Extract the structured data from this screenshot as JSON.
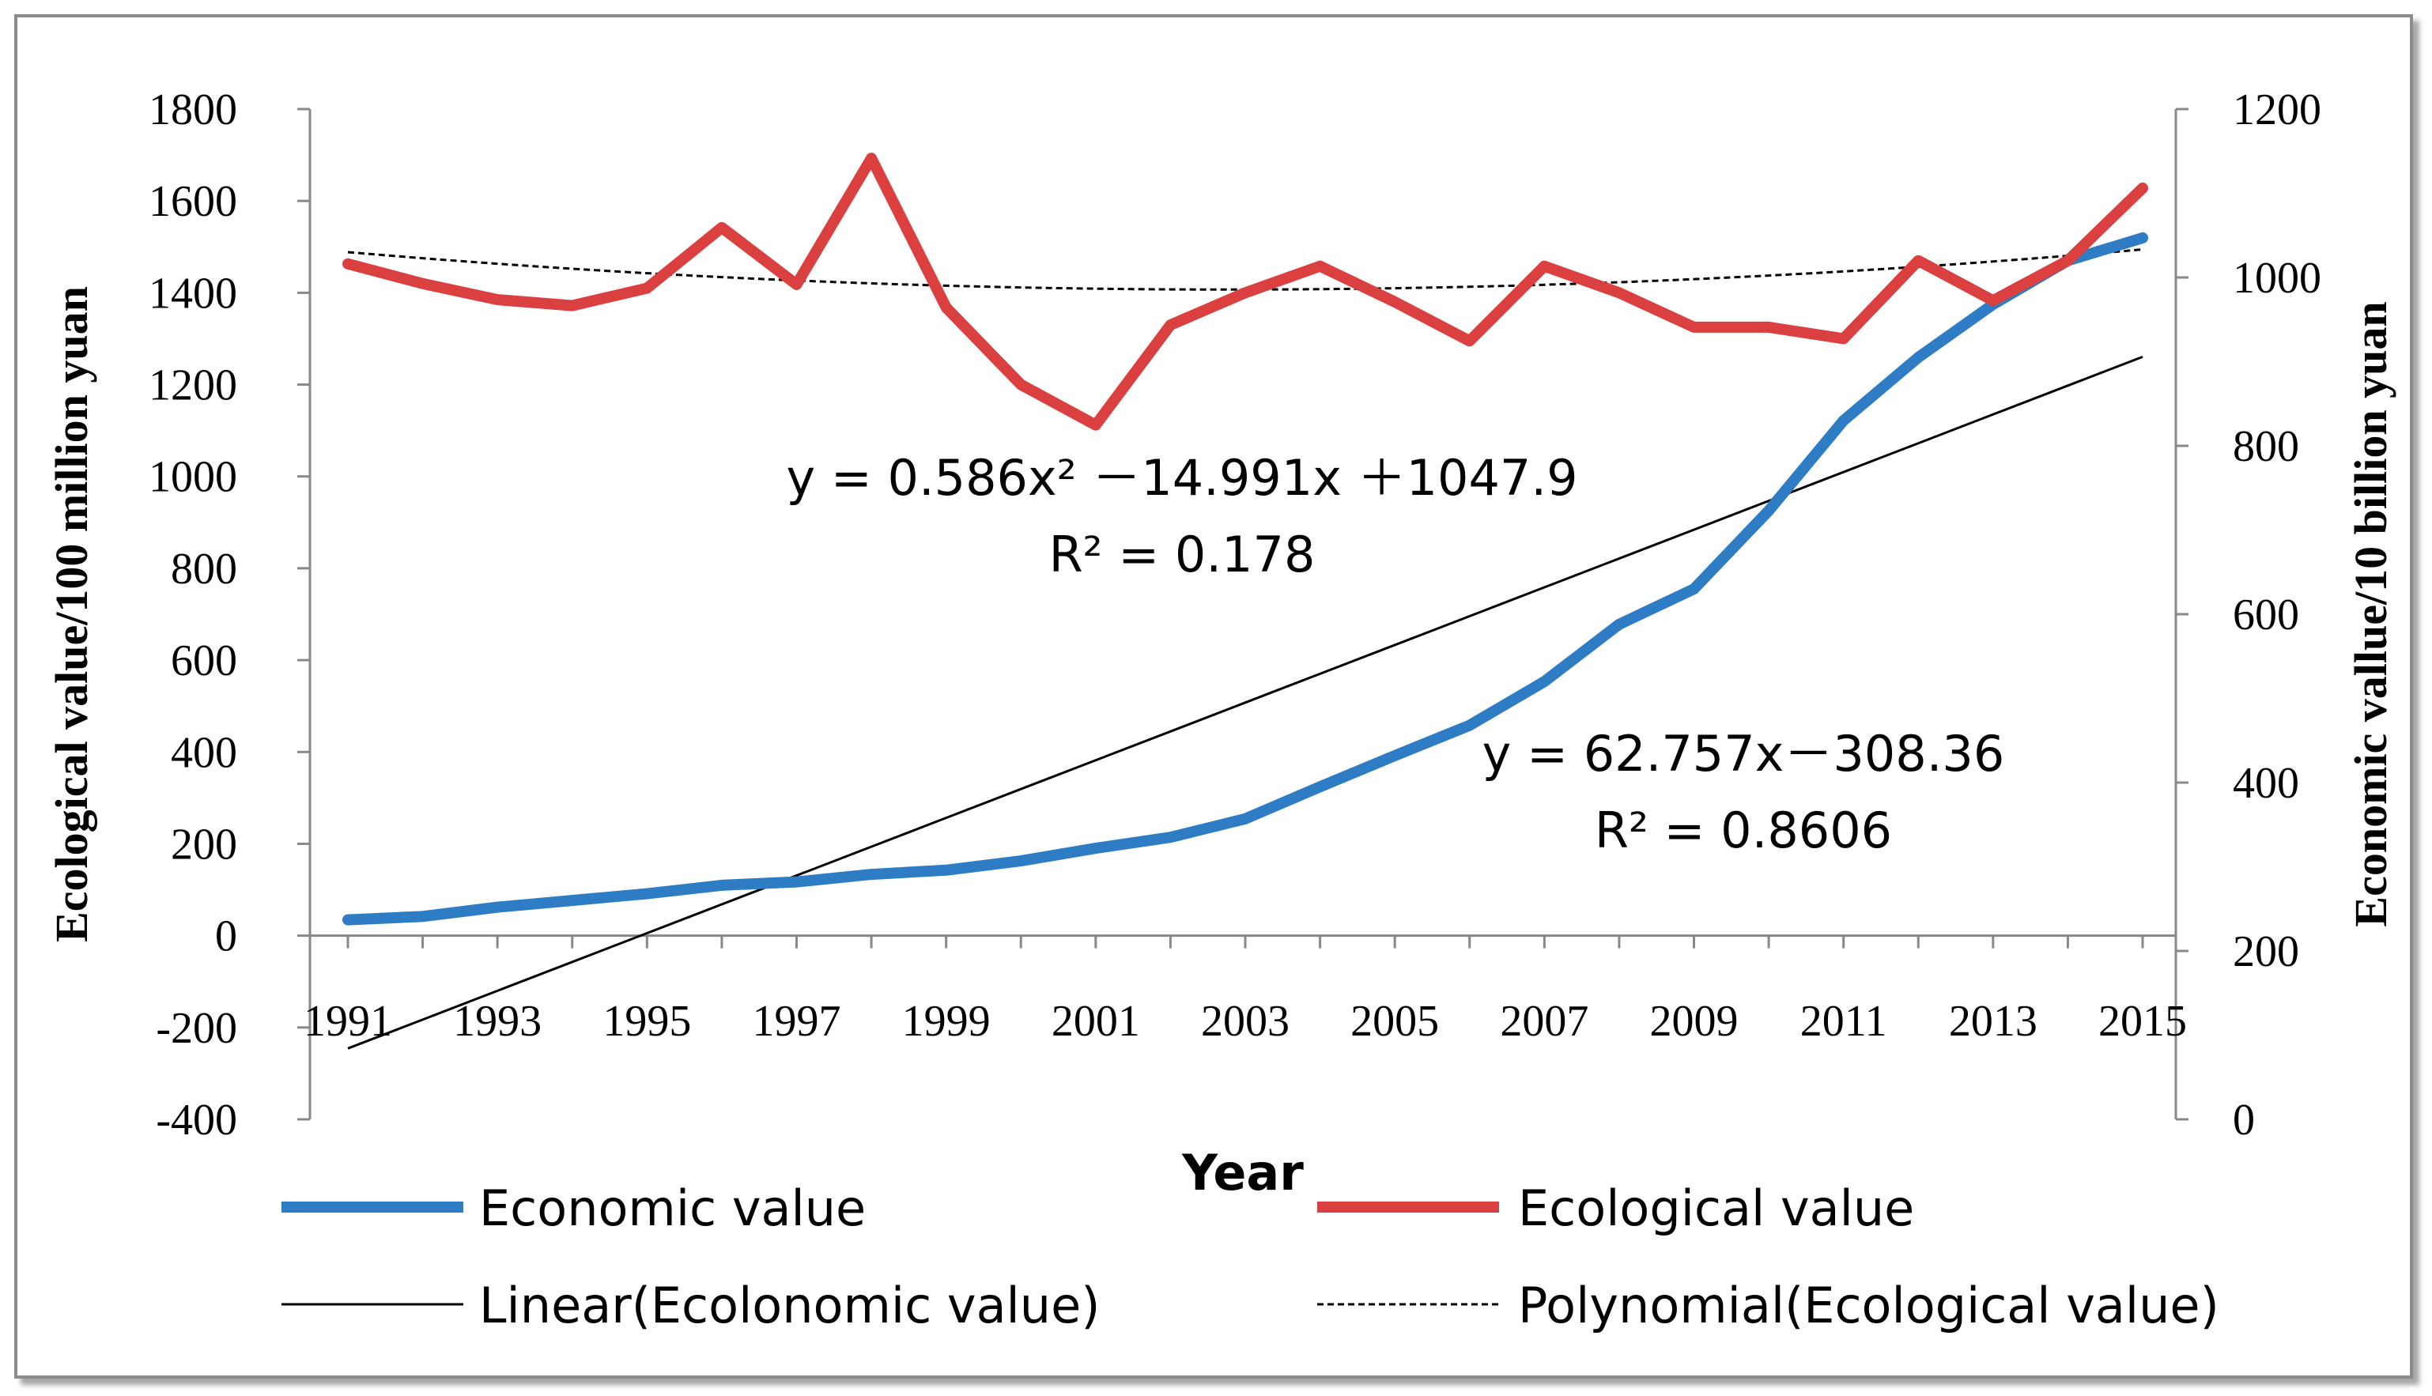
{
  "chart_data": {
    "type": "line",
    "title": "",
    "xlabel": "Year",
    "ylabel_left": "Ecological value/100 million  yuan",
    "ylabel_right": "Economic vallue/10 billion  yuan",
    "x": [
      1991,
      1992,
      1993,
      1994,
      1995,
      1996,
      1997,
      1998,
      1999,
      2000,
      2001,
      2002,
      2003,
      2004,
      2005,
      2006,
      2007,
      2008,
      2009,
      2010,
      2011,
      2012,
      2013,
      2014,
      2015
    ],
    "x_tick_labels": [
      "1991",
      "1993",
      "1995",
      "1997",
      "1999",
      "2001",
      "2003",
      "2005",
      "2007",
      "2009",
      "2011",
      "2013",
      "2015"
    ],
    "ylim_left": [
      -400,
      1800
    ],
    "yticks_left": [
      "1800",
      "1600",
      "1400",
      "1200",
      "1000",
      "800",
      "600",
      "400",
      "200",
      "0",
      "-200",
      "-400"
    ],
    "ylim_right": [
      0,
      1200
    ],
    "yticks_right": [
      "1200",
      "1000",
      "800",
      "600",
      "400",
      "200",
      "0"
    ],
    "series": [
      {
        "name": "Economic value",
        "axis": "right",
        "color": "#2e7cc4",
        "values": [
          237,
          241,
          252,
          260,
          268,
          278,
          282,
          291,
          296,
          307,
          322,
          335,
          357,
          395,
          432,
          468,
          520,
          588,
          630,
          723,
          830,
          905,
          968,
          1020,
          1047
        ]
      },
      {
        "name": "Ecological value",
        "axis": "left",
        "color": "#d9403f",
        "values": [
          1463,
          1420,
          1385,
          1372,
          1410,
          1542,
          1418,
          1693,
          1368,
          1200,
          1112,
          1330,
          1400,
          1458,
          1380,
          1295,
          1458,
          1400,
          1325,
          1325,
          1300,
          1470,
          1383,
          1470,
          1628
        ]
      }
    ],
    "trendlines": [
      {
        "name": "Linear(Ecolonomic value)",
        "type": "linear",
        "axis": "left",
        "color": "#000000",
        "equation": "y = 62.757x－308.36",
        "r2": "R² = 0.8606"
      },
      {
        "name": "Polynomial(Ecological value)",
        "type": "polynomial",
        "axis": "left",
        "color": "#000000",
        "equation": "y = 0.586x² －14.991x ＋1047.9",
        "r2": "R² = 0.178"
      }
    ],
    "legend": [
      "Economic value",
      "Ecological value",
      "Linear(Ecolonomic value)",
      "Polynomial(Ecological value)"
    ]
  }
}
